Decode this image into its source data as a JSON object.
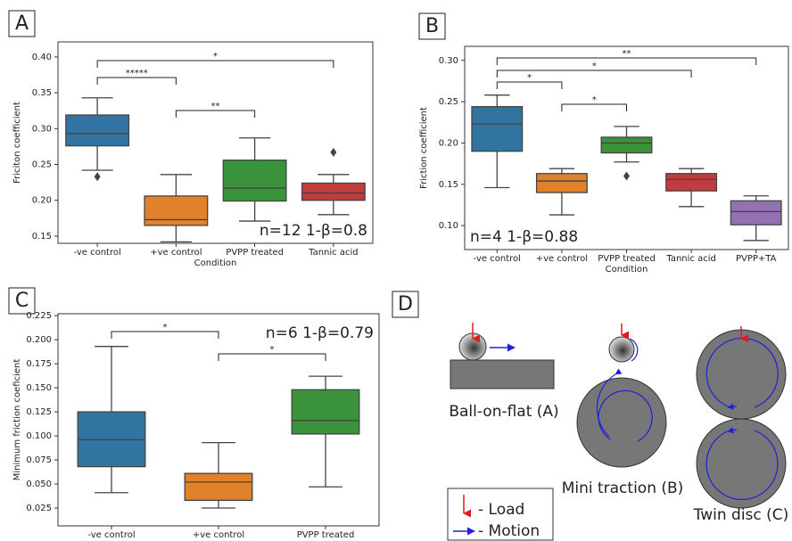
{
  "chart_data": [
    {
      "type": "box",
      "panel": "A",
      "ylabel": "Friciton coefficient",
      "xlabel": "Condition",
      "annotation": "n=12 1-β=0.8",
      "categories": [
        "-ve control",
        "+ve control",
        "PVPP treated",
        "Tannic acid"
      ],
      "colors": [
        "#3274a1",
        "#e1812c",
        "#3a923a",
        "#c03d3e"
      ],
      "whislo": [
        0.242,
        0.142,
        0.171,
        0.18
      ],
      "q1": [
        0.276,
        0.165,
        0.199,
        0.2
      ],
      "med": [
        0.293,
        0.173,
        0.217,
        0.21
      ],
      "q3": [
        0.319,
        0.206,
        0.256,
        0.224
      ],
      "whishi": [
        0.343,
        0.236,
        0.287,
        0.236
      ],
      "outliers": [
        [
          0.233
        ],
        [],
        [],
        [
          0.267
        ]
      ],
      "ylim": [
        0.14,
        0.421
      ],
      "yticks": [
        {
          "value": 0.15,
          "label": "0.15"
        },
        {
          "value": 0.2,
          "label": "0.20"
        },
        {
          "value": 0.25,
          "label": "0.25"
        },
        {
          "value": 0.3,
          "label": "0.30"
        },
        {
          "value": 0.35,
          "label": "0.35"
        },
        {
          "value": 0.4,
          "label": "0.40"
        }
      ],
      "brackets": [
        {
          "from": 0,
          "to": 1,
          "label": "*****"
        },
        {
          "from": 1,
          "to": 2,
          "label": "**"
        },
        {
          "from": 0,
          "to": 3,
          "label": "*"
        }
      ]
    },
    {
      "type": "box",
      "panel": "B",
      "ylabel": "Friction coefficient",
      "xlabel": "Condition",
      "annotation": "n=4 1-β=0.88",
      "categories": [
        "-ve control",
        "+ve control",
        "PVPP treated",
        "Tannic acid",
        "PVPP+TA"
      ],
      "colors": [
        "#3274a1",
        "#e1812c",
        "#3a923a",
        "#c03d3e",
        "#9372b2"
      ],
      "whislo": [
        0.146,
        0.113,
        0.177,
        0.123,
        0.082
      ],
      "q1": [
        0.19,
        0.14,
        0.188,
        0.142,
        0.101
      ],
      "med": [
        0.223,
        0.154,
        0.2,
        0.156,
        0.117
      ],
      "q3": [
        0.244,
        0.163,
        0.207,
        0.163,
        0.13
      ],
      "whishi": [
        0.258,
        0.169,
        0.22,
        0.169,
        0.136
      ],
      "outliers": [
        [],
        [],
        [
          0.16
        ],
        [],
        []
      ],
      "ylim": [
        0.071,
        0.317
      ],
      "yticks": [
        {
          "value": 0.1,
          "label": "0.10"
        },
        0.15,
        {
          "value": 0.2,
          "label": "0.20"
        },
        0.25,
        {
          "value": 0.3,
          "label": "0.30"
        }
      ],
      "brackets": [
        {
          "from": 0,
          "to": 1,
          "label": "*"
        },
        {
          "from": 1,
          "to": 2,
          "label": "*"
        },
        {
          "from": 0,
          "to": 3,
          "label": "*"
        },
        {
          "from": 0,
          "to": 4,
          "label": "**"
        }
      ]
    },
    {
      "type": "box",
      "panel": "C",
      "ylabel": "Minimum friction coeficient",
      "annotation": "n=6 1-β=0.79",
      "categories": [
        "-ve control",
        "+ve control",
        "PVPP treated"
      ],
      "colors": [
        "#3274a1",
        "#e1812c",
        "#3a923a"
      ],
      "whislo": [
        0.041,
        0.025,
        0.047
      ],
      "q1": [
        0.068,
        0.033,
        0.102
      ],
      "med": [
        0.096,
        0.052,
        0.116
      ],
      "q3": [
        0.125,
        0.061,
        0.148
      ],
      "whishi": [
        0.193,
        0.093,
        0.162
      ],
      "outliers": [
        [],
        [],
        []
      ],
      "ylim": [
        0.0065,
        0.227
      ],
      "yticks": [
        0.025,
        {
          "value": 0.05,
          "label": "0.050"
        },
        0.075,
        {
          "value": 0.1,
          "label": "0.100"
        },
        0.125,
        {
          "value": 0.15,
          "label": "0.150"
        },
        0.175,
        {
          "value": 0.2,
          "label": "0.200"
        },
        0.225
      ],
      "brackets": [
        {
          "from": 0,
          "to": 1,
          "label": "*"
        },
        {
          "from": 1,
          "to": 2,
          "label": "*"
        }
      ]
    }
  ],
  "diagram": {
    "panel": "D",
    "items": [
      "Ball-on-flat (A)",
      "Mini traction (B)",
      "Twin disc (C)"
    ],
    "legend": [
      "- Load",
      "- Motion"
    ]
  }
}
